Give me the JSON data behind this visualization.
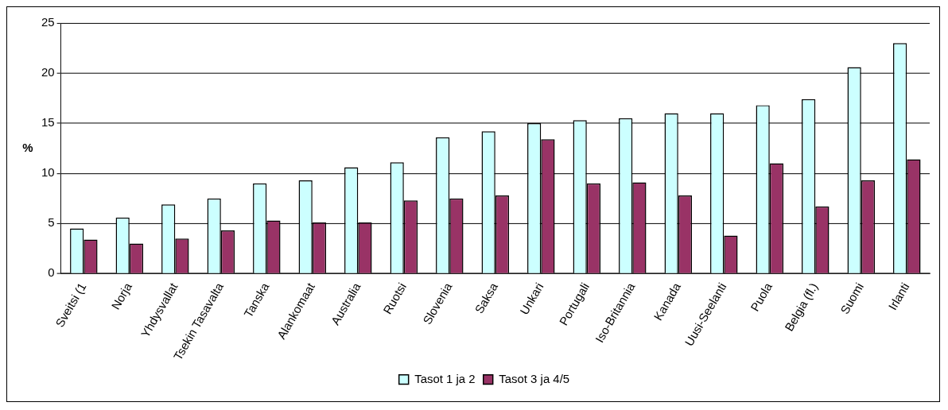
{
  "chart_data": {
    "type": "bar",
    "ylabel": "%",
    "categories": [
      "Sveitsi (1",
      "Norja",
      "Yhdysvallat",
      "Tsekin Tasavalta",
      "Tanska",
      "Alankomaat",
      "Australia",
      "Ruotsi",
      "Slovenia",
      "Saksa",
      "Unkari",
      "Portugali",
      "Iso-Britannia",
      "Kanada",
      "Uusi-Seelanti",
      "Puola",
      "Belgia (fl.)",
      "Suomi",
      "Irlanti"
    ],
    "series": [
      {
        "name": "Tasot 1 ja 2",
        "color": "#ccffff",
        "values": [
          4.5,
          5.6,
          6.9,
          7.5,
          9.0,
          9.3,
          10.6,
          11.1,
          13.6,
          14.2,
          15.0,
          15.3,
          15.5,
          16.0,
          16.0,
          16.8,
          17.4,
          20.6,
          23.0
        ]
      },
      {
        "name": "Tasot 3 ja 4/5",
        "color": "#993366",
        "values": [
          3.4,
          3.0,
          3.5,
          4.3,
          5.3,
          5.1,
          5.1,
          7.3,
          7.5,
          7.8,
          13.4,
          9.0,
          9.1,
          7.8,
          3.8,
          11.0,
          6.7,
          9.3,
          11.4
        ]
      }
    ],
    "ylim": [
      0,
      25
    ],
    "yticks": [
      0,
      5,
      10,
      15,
      20,
      25
    ],
    "grid": "y",
    "legend": "bottom"
  }
}
